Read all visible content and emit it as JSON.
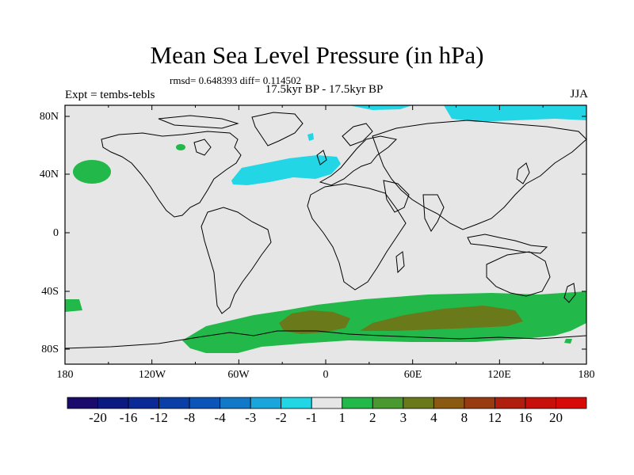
{
  "title": "Mean Sea Level Pressure (in hPa)",
  "stats": "rmsd= 0.648393 diff= 0.114502",
  "period": "17.5kyr BP - 17.5kyr BP",
  "experiment": "Expt = tembs-tebls",
  "season": "JJA",
  "lat_labels": [
    "80N",
    "40N",
    "0",
    "40S",
    "80S"
  ],
  "lon_labels": [
    "180",
    "120W",
    "60W",
    "0",
    "60E",
    "120E",
    "180"
  ],
  "colorbar": {
    "labels": [
      "-20",
      "-16",
      "-12",
      "-8",
      "-4",
      "-3",
      "-2",
      "-1",
      "1",
      "2",
      "3",
      "4",
      "8",
      "12",
      "16",
      "20"
    ],
    "colors": [
      "#1a0a6b",
      "#0a1a80",
      "#0c2a95",
      "#0a3fa8",
      "#0b55b8",
      "#1278c8",
      "#1aa6dc",
      "#22d6e6",
      "#e6e6e6",
      "#22b84a",
      "#4a9830",
      "#6a7a1a",
      "#8a5a12",
      "#9a3a10",
      "#b01e0e",
      "#c8100a",
      "#d80a08"
    ]
  },
  "colors": {
    "land_ocean": "#e6e6e6",
    "coast": "#000000"
  }
}
